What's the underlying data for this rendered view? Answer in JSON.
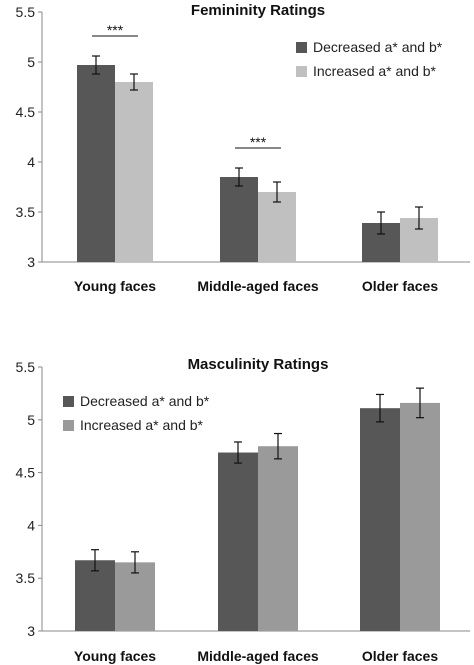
{
  "colors": {
    "axis": "#888888",
    "errorbar": "#111111",
    "annotation": "#111111"
  },
  "chart_data": [
    {
      "type": "bar",
      "title": "Femininity Ratings",
      "xlabel": "",
      "ylabel": "",
      "categories": [
        "Young faces",
        "Middle-aged faces",
        "Older faces"
      ],
      "ylim": [
        3,
        5.5
      ],
      "yticks": [
        "3",
        "3.5",
        "4",
        "4.5",
        "5",
        "5.5"
      ],
      "grid": false,
      "legend_position": "top-right",
      "series": [
        {
          "name": "Decreased a* and b*",
          "color": "#575757",
          "values": [
            4.97,
            3.85,
            3.39
          ],
          "error": [
            0.09,
            0.09,
            0.11
          ]
        },
        {
          "name": "Increased a* and b*",
          "color": "#c0c0c0",
          "values": [
            4.8,
            3.7,
            3.44
          ],
          "error": [
            0.08,
            0.1,
            0.11
          ]
        }
      ],
      "annotations": [
        {
          "text": "***",
          "category_index": 0
        },
        {
          "text": "***",
          "category_index": 1
        }
      ]
    },
    {
      "type": "bar",
      "title": "Masculinity Ratings",
      "xlabel": "",
      "ylabel": "",
      "categories": [
        "Young faces",
        "Middle-aged faces",
        "Older faces"
      ],
      "ylim": [
        3,
        5.5
      ],
      "yticks": [
        "3",
        "3.5",
        "4",
        "4.5",
        "5",
        "5.5"
      ],
      "grid": false,
      "legend_position": "top-left",
      "series": [
        {
          "name": "Decreased a* and b*",
          "color": "#575757",
          "values": [
            3.67,
            4.69,
            5.11
          ],
          "error": [
            0.1,
            0.1,
            0.13
          ]
        },
        {
          "name": "Increased a* and b*",
          "color": "#9a9a9a",
          "values": [
            3.65,
            4.75,
            5.16
          ],
          "error": [
            0.1,
            0.12,
            0.14
          ]
        }
      ],
      "annotations": []
    }
  ]
}
